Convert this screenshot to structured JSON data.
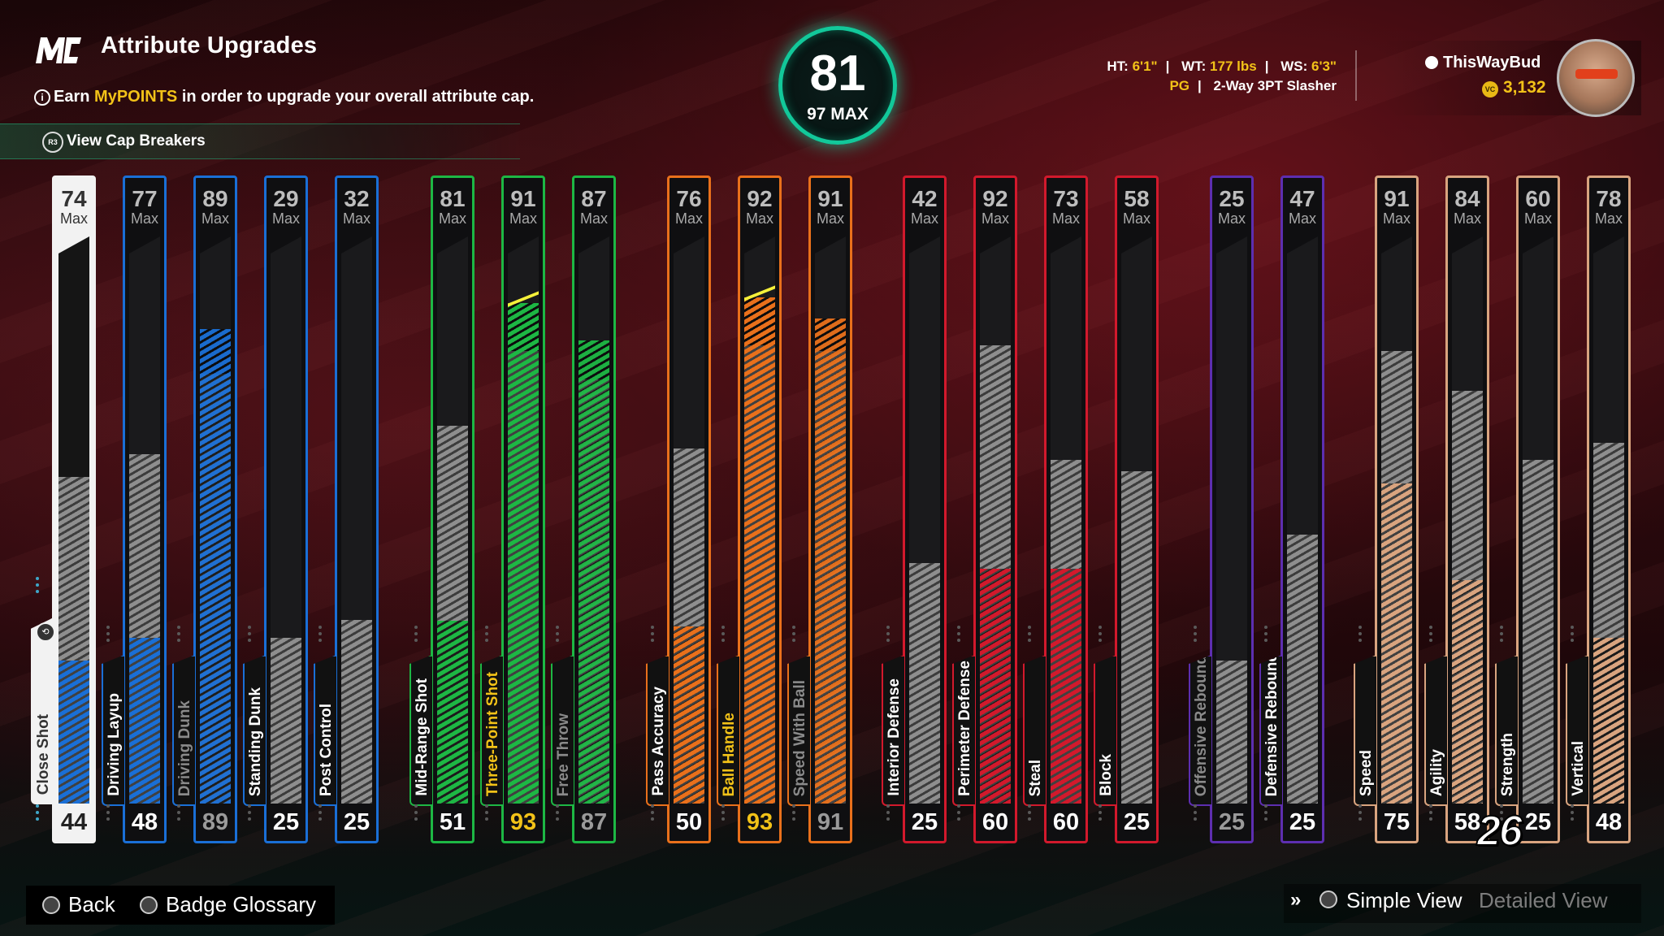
{
  "header": {
    "title": "Attribute Upgrades",
    "subtitle_pre": "Earn ",
    "subtitle_highlight": "MyPOINTS",
    "subtitle_post": " in order to upgrade your overall attribute cap.",
    "cap_breakers_label": "View Cap Breakers",
    "r3_icon": "R3"
  },
  "overall": {
    "value": "81",
    "max_label": "97 MAX"
  },
  "player": {
    "ht_label": "HT:",
    "ht": "6'1\"",
    "wt_label": "WT:",
    "wt": "177 lbs",
    "ws_label": "WS:",
    "ws": "6'3\"",
    "position": "PG",
    "archetype": "2-Way 3PT Slasher"
  },
  "user": {
    "name": "ThisWayBud",
    "vc": "3,132"
  },
  "colors": {
    "finishing": "#1a6fd6",
    "shooting": "#1db744",
    "playmaking": "#e9701b",
    "defense": "#d2192c",
    "rebounding": "#5d2eb0",
    "physicals": "#d9a47f",
    "highlight": "#f2c218"
  },
  "max_label": "Max",
  "attributes": [
    {
      "name": "Close Shot",
      "max": "74",
      "current": "44",
      "group": "finishing",
      "gray_to": 57,
      "state": "selected"
    },
    {
      "name": "Driving Layup",
      "max": "77",
      "current": "48",
      "group": "finishing",
      "gray_to": 61,
      "state": "normal"
    },
    {
      "name": "Driving Dunk",
      "max": "89",
      "current": "89",
      "group": "finishing",
      "gray_to": 75,
      "state": "dim"
    },
    {
      "name": "Standing Dunk",
      "max": "29",
      "current": "25",
      "group": "finishing",
      "gray_to": 29,
      "state": "normal"
    },
    {
      "name": "Post Control",
      "max": "32",
      "current": "25",
      "group": "finishing",
      "gray_to": 32,
      "state": "normal"
    },
    {
      "name": "Mid-Range Shot",
      "max": "81",
      "current": "51",
      "group": "shooting",
      "gray_to": 66,
      "state": "normal"
    },
    {
      "name": "Three-Point Shot",
      "max": "91",
      "current": "93",
      "group": "shooting",
      "gray_to": 79,
      "state": "highlight"
    },
    {
      "name": "Free Throw",
      "max": "87",
      "current": "87",
      "group": "shooting",
      "gray_to": 74,
      "state": "dim"
    },
    {
      "name": "Pass Accuracy",
      "max": "76",
      "current": "50",
      "group": "playmaking",
      "gray_to": 62,
      "state": "normal"
    },
    {
      "name": "Ball Handle",
      "max": "92",
      "current": "93",
      "group": "playmaking",
      "gray_to": 80,
      "state": "highlight"
    },
    {
      "name": "Speed With Ball",
      "max": "91",
      "current": "91",
      "group": "playmaking",
      "gray_to": 79,
      "state": "dim"
    },
    {
      "name": "Interior Defense",
      "max": "42",
      "current": "25",
      "group": "defense",
      "gray_to": 42,
      "state": "normal"
    },
    {
      "name": "Perimeter Defense",
      "max": "92",
      "current": "60",
      "group": "defense",
      "gray_to": 80,
      "state": "normal"
    },
    {
      "name": "Steal",
      "max": "73",
      "current": "60",
      "group": "defense",
      "gray_to": 60,
      "state": "normal"
    },
    {
      "name": "Block",
      "max": "58",
      "current": "25",
      "group": "defense",
      "gray_to": 58,
      "state": "normal"
    },
    {
      "name": "Offensive Rebound",
      "max": "25",
      "current": "25",
      "group": "rebounding",
      "gray_to": 25,
      "state": "dim"
    },
    {
      "name": "Defensive Rebound",
      "max": "47",
      "current": "25",
      "group": "rebounding",
      "gray_to": 47,
      "state": "normal"
    },
    {
      "name": "Speed",
      "max": "91",
      "current": "75",
      "group": "physicals",
      "gray_to": 79,
      "state": "normal"
    },
    {
      "name": "Agility",
      "max": "84",
      "current": "58",
      "group": "physicals",
      "gray_to": 72,
      "state": "normal"
    },
    {
      "name": "Strength",
      "max": "60",
      "current": "25",
      "group": "physicals",
      "gray_to": 60,
      "state": "normal"
    },
    {
      "name": "Vertical",
      "max": "78",
      "current": "48",
      "group": "physicals",
      "gray_to": 63,
      "state": "normal"
    }
  ],
  "footer": {
    "back_label": "Back",
    "glossary_label": "Badge Glossary",
    "simple_view": "Simple View",
    "detailed_view": "Detailed View",
    "game_logo": "26"
  }
}
